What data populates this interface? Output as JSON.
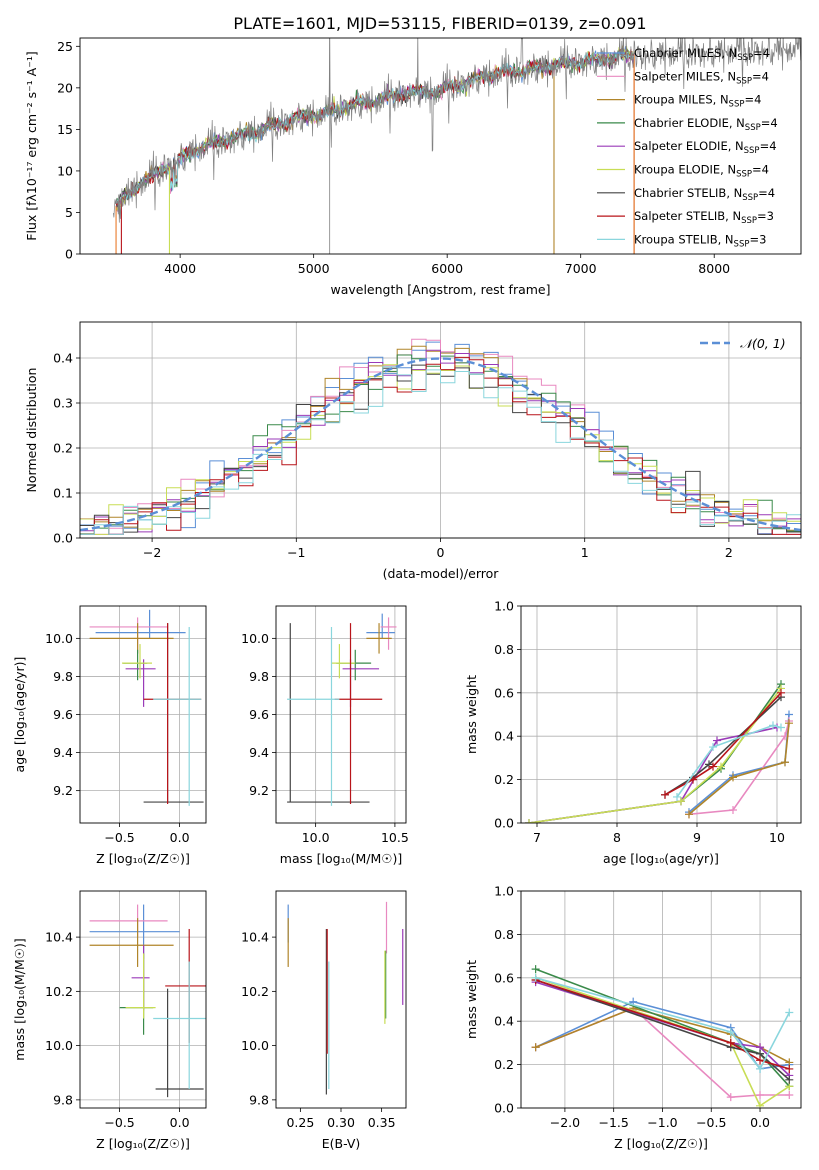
{
  "figure_title": "PLATE=1601, MJD=53115, FIBERID=0139, z=0.091",
  "series": [
    {
      "key": "chabrier_miles",
      "name": "Chabrier MILES, N",
      "sub": "SSP",
      "suffix": "=4",
      "color": "#5b8fd6"
    },
    {
      "key": "salpeter_miles",
      "name": "Salpeter MILES, N",
      "sub": "SSP",
      "suffix": "=4",
      "color": "#e889c0"
    },
    {
      "key": "kroupa_miles",
      "name": "Kroupa MILES, N",
      "sub": "SSP",
      "suffix": "=4",
      "color": "#b0852a"
    },
    {
      "key": "chabrier_elodie",
      "name": "Chabrier ELODIE, N",
      "sub": "SSP",
      "suffix": "=4",
      "color": "#3a8a4a"
    },
    {
      "key": "salpeter_elodie",
      "name": "Salpeter ELODIE, N",
      "sub": "SSP",
      "suffix": "=4",
      "color": "#9a3ab8"
    },
    {
      "key": "kroupa_elodie",
      "name": "Kroupa ELODIE, N",
      "sub": "SSP",
      "suffix": "=4",
      "color": "#c8dd55"
    },
    {
      "key": "chabrier_stelib",
      "name": "Chabrier STELIB, N",
      "sub": "SSP",
      "suffix": "=4",
      "color": "#444444"
    },
    {
      "key": "salpeter_stelib",
      "name": "Salpeter STELIB, N",
      "sub": "SSP",
      "suffix": "=3",
      "color": "#b8141a"
    },
    {
      "key": "kroupa_stelib",
      "name": "Kroupa STELIB, N",
      "sub": "SSP",
      "suffix": "=3",
      "color": "#8ad6dd"
    }
  ],
  "chart_data": [
    {
      "id": "spectrum",
      "type": "line",
      "xlabel": "wavelength [Angstrom, rest frame]",
      "ylabel": "Flux [fλ10⁻¹⁷ erg cm⁻² s⁻¹ A⁻¹]",
      "xlim": [
        3250,
        8650
      ],
      "ylim": [
        0,
        26
      ],
      "xticks": [
        4000,
        5000,
        6000,
        7000,
        8000
      ],
      "yticks": [
        0,
        5,
        10,
        15,
        20,
        25
      ],
      "legend": "upper right",
      "grid": false,
      "data_color": "#808080",
      "continuum": {
        "x": [
          3500,
          3700,
          3900,
          4100,
          4300,
          4500,
          4700,
          4900,
          5100,
          5300,
          5500,
          5700,
          5900,
          6100,
          6300,
          6500,
          6700,
          6900,
          7100,
          7300,
          7400
        ],
        "y": [
          5.5,
          8.5,
          10.5,
          12.5,
          13.5,
          14.5,
          15.5,
          16.5,
          17,
          18,
          18.5,
          19.5,
          19.5,
          20.5,
          21.5,
          22,
          22.5,
          23,
          23.3,
          23.8,
          24
        ]
      },
      "model_range": [
        3520,
        7400
      ],
      "data_range": [
        3500,
        8650
      ]
    },
    {
      "id": "residuals",
      "type": "histogram",
      "xlabel": "(data-model)/error",
      "ylabel": "Normed distribution",
      "xlim": [
        -2.5,
        2.5
      ],
      "ylim": [
        0,
        0.48
      ],
      "xticks": [
        -2,
        -1,
        0,
        1,
        2
      ],
      "yticks": [
        0.0,
        0.1,
        0.2,
        0.3,
        0.4
      ],
      "legend": "upper right",
      "grid": true,
      "gauss_label": "𝒩(0, 1)",
      "gauss_color": "#5b8fd6",
      "bin_width": 0.1
    },
    {
      "id": "age_vs_Z",
      "type": "errorbar",
      "xlabel": "Z [log₁₀(Z/Z☉)]",
      "ylabel": "age  [log₁₀(age/yr)]",
      "xlim": [
        -0.83,
        0.22
      ],
      "ylim": [
        9.03,
        10.17
      ],
      "xticks": [
        -0.5,
        0.0
      ],
      "yticks": [
        9.2,
        9.4,
        9.6,
        9.8,
        10.0
      ],
      "grid": true,
      "points": [
        {
          "s": 0,
          "x": -0.25,
          "y": 10.03,
          "xe": [
            0.45,
            0.3
          ],
          "ye": [
            0.03,
            0.12
          ]
        },
        {
          "s": 1,
          "x": -0.35,
          "y": 10.06,
          "xe": [
            0.4,
            0.25
          ],
          "ye": [
            0.12,
            0.05
          ]
        },
        {
          "s": 2,
          "x": -0.35,
          "y": 10.0,
          "xe": [
            0.4,
            0.3
          ],
          "ye": [
            0.08,
            0.08
          ]
        },
        {
          "s": 3,
          "x": -0.35,
          "y": 9.87,
          "xe": [
            0.12,
            0.08
          ],
          "ye": [
            0.09,
            0.07
          ]
        },
        {
          "s": 4,
          "x": -0.3,
          "y": 9.84,
          "xe": [
            0.15,
            0.1
          ],
          "ye": [
            0.2,
            0.05
          ]
        },
        {
          "s": 5,
          "x": -0.33,
          "y": 9.87,
          "xe": [
            0.15,
            0.1
          ],
          "ye": [
            0.08,
            0.1
          ]
        },
        {
          "s": 6,
          "x": -0.1,
          "y": 9.14,
          "xe": [
            0.2,
            0.3
          ],
          "ye": [
            0.0,
            0.94
          ]
        },
        {
          "s": 7,
          "x": -0.1,
          "y": 9.68,
          "xe": [
            0.2,
            0.28
          ],
          "ye": [
            0.55,
            0.4
          ]
        },
        {
          "s": 8,
          "x": 0.08,
          "y": 9.68,
          "xe": [
            0.3,
            0.1
          ],
          "ye": [
            0.56,
            0.38
          ]
        }
      ]
    },
    {
      "id": "age_vs_mass",
      "type": "errorbar",
      "xlabel": "mass [log₁₀(M/M☉)]",
      "ylabel": "",
      "xlim": [
        9.75,
        10.57
      ],
      "ylim": [
        9.03,
        10.17
      ],
      "xticks": [
        10.0,
        10.5
      ],
      "yticks": [
        9.2,
        9.4,
        9.6,
        9.8,
        10.0
      ],
      "grid": true,
      "points": [
        {
          "s": 0,
          "x": 10.42,
          "y": 10.03,
          "xe": [
            0.1,
            0.08
          ],
          "ye": [
            0.03,
            0.1
          ]
        },
        {
          "s": 1,
          "x": 10.46,
          "y": 10.06,
          "xe": [
            0.05,
            0.05
          ],
          "ye": [
            0.12,
            0.05
          ]
        },
        {
          "s": 2,
          "x": 10.4,
          "y": 10.0,
          "xe": [
            0.08,
            0.08
          ],
          "ye": [
            0.08,
            0.08
          ]
        },
        {
          "s": 3,
          "x": 10.25,
          "y": 9.87,
          "xe": [
            0.12,
            0.1
          ],
          "ye": [
            0.09,
            0.07
          ]
        },
        {
          "s": 4,
          "x": 10.22,
          "y": 9.84,
          "xe": [
            0.05,
            0.18
          ],
          "ye": [
            0.2,
            0.05
          ]
        },
        {
          "s": 5,
          "x": 10.15,
          "y": 9.87,
          "xe": [
            0.05,
            0.1
          ],
          "ye": [
            0.08,
            0.1
          ]
        },
        {
          "s": 6,
          "x": 9.84,
          "y": 9.14,
          "xe": [
            0.02,
            0.5
          ],
          "ye": [
            0.0,
            0.94
          ]
        },
        {
          "s": 7,
          "x": 10.22,
          "y": 9.68,
          "xe": [
            0.1,
            0.2
          ],
          "ye": [
            0.55,
            0.4
          ]
        },
        {
          "s": 8,
          "x": 10.1,
          "y": 9.68,
          "xe": [
            0.28,
            0.05
          ],
          "ye": [
            0.56,
            0.38
          ]
        }
      ]
    },
    {
      "id": "massweight_vs_age",
      "type": "line",
      "xlabel": "age  [log₁₀(age/yr)]",
      "ylabel": "mass weight",
      "xlim": [
        6.8,
        10.3
      ],
      "ylim": [
        0,
        1
      ],
      "xticks": [
        7,
        8,
        9,
        10
      ],
      "yticks": [
        0.0,
        0.2,
        0.4,
        0.6,
        0.8,
        1.0
      ],
      "grid": true,
      "lines": [
        {
          "s": 0,
          "x": [
            8.9,
            9.45,
            10.1,
            10.15
          ],
          "y": [
            0.05,
            0.22,
            0.28,
            0.5
          ]
        },
        {
          "s": 1,
          "x": [
            8.9,
            9.45,
            10.1,
            10.15
          ],
          "y": [
            0.04,
            0.06,
            0.4,
            0.47
          ]
        },
        {
          "s": 2,
          "x": [
            8.9,
            9.45,
            10.1,
            10.15
          ],
          "y": [
            0.04,
            0.21,
            0.28,
            0.46
          ]
        },
        {
          "s": 3,
          "x": [
            6.9,
            8.8,
            9.3,
            10.05
          ],
          "y": [
            0.0,
            0.1,
            0.25,
            0.64
          ]
        },
        {
          "s": 4,
          "x": [
            6.9,
            8.8,
            9.25,
            10.0
          ],
          "y": [
            0.0,
            0.1,
            0.38,
            0.44
          ]
        },
        {
          "s": 5,
          "x": [
            6.9,
            8.8,
            9.3,
            10.05
          ],
          "y": [
            0.0,
            0.1,
            0.26,
            0.62
          ]
        },
        {
          "s": 6,
          "x": [
            8.6,
            8.95,
            9.15,
            10.05
          ],
          "y": [
            0.13,
            0.21,
            0.27,
            0.58
          ]
        },
        {
          "s": 7,
          "x": [
            8.6,
            8.95,
            9.2,
            10.05
          ],
          "y": [
            0.13,
            0.2,
            0.26,
            0.6
          ]
        },
        {
          "s": 8,
          "x": [
            8.75,
            9.2,
            9.95,
            10.05
          ],
          "y": [
            0.12,
            0.35,
            0.45,
            0.44
          ]
        }
      ]
    },
    {
      "id": "mass_vs_Z",
      "type": "errorbar",
      "xlabel": "Z [log₁₀(Z/Z☉)]",
      "ylabel": "mass [log₁₀(M/M☉)]",
      "xlim": [
        -0.83,
        0.22
      ],
      "ylim": [
        9.77,
        10.57
      ],
      "xticks": [
        -0.5,
        0.0
      ],
      "yticks": [
        9.8,
        10.0,
        10.2,
        10.4
      ],
      "grid": true,
      "points": [
        {
          "s": 0,
          "x": -0.3,
          "y": 10.42,
          "xe": [
            0.45,
            0.3
          ],
          "ye": [
            0.1,
            0.1
          ]
        },
        {
          "s": 1,
          "x": -0.35,
          "y": 10.46,
          "xe": [
            0.4,
            0.25
          ],
          "ye": [
            0.06,
            0.06
          ]
        },
        {
          "s": 2,
          "x": -0.35,
          "y": 10.37,
          "xe": [
            0.4,
            0.3
          ],
          "ye": [
            0.08,
            0.1
          ]
        },
        {
          "s": 3,
          "x": -0.3,
          "y": 10.14,
          "xe": [
            0.2,
            0.08
          ],
          "ye": [
            0.1,
            0.2
          ]
        },
        {
          "s": 4,
          "x": -0.3,
          "y": 10.25,
          "xe": [
            0.1,
            0.05
          ],
          "ye": [
            0.12,
            0.12
          ]
        },
        {
          "s": 5,
          "x": -0.3,
          "y": 10.14,
          "xe": [
            0.15,
            0.1
          ],
          "ye": [
            0.04,
            0.2
          ]
        },
        {
          "s": 6,
          "x": -0.1,
          "y": 9.84,
          "xe": [
            0.1,
            0.3
          ],
          "ye": [
            0.03,
            0.37
          ]
        },
        {
          "s": 7,
          "x": 0.08,
          "y": 10.22,
          "xe": [
            0.2,
            0.15
          ],
          "ye": [
            0.21,
            0.21
          ]
        },
        {
          "s": 8,
          "x": 0.08,
          "y": 10.1,
          "xe": [
            0.3,
            0.18
          ],
          "ye": [
            0.26,
            0.21
          ]
        }
      ]
    },
    {
      "id": "mass_vs_ebv",
      "type": "errorbar",
      "xlabel": "E(B-V)",
      "ylabel": "",
      "xlim": [
        0.22,
        0.38
      ],
      "ylim": [
        9.77,
        10.57
      ],
      "xticks": [
        0.25,
        0.3,
        0.35
      ],
      "yticks": [
        9.8,
        10.0,
        10.2,
        10.4
      ],
      "grid": false,
      "points": [
        {
          "s": 0,
          "x": 0.235,
          "y": 10.44,
          "xe": [
            0,
            0
          ],
          "ye": [
            0.06,
            0.08
          ]
        },
        {
          "s": 1,
          "x": 0.356,
          "y": 10.44,
          "xe": [
            0,
            0
          ],
          "ye": [
            0.1,
            0.09
          ]
        },
        {
          "s": 2,
          "x": 0.235,
          "y": 10.37,
          "xe": [
            0,
            0
          ],
          "ye": [
            0.08,
            0.1
          ]
        },
        {
          "s": 3,
          "x": 0.355,
          "y": 10.25,
          "xe": [
            0,
            0
          ],
          "ye": [
            0.15,
            0.1
          ]
        },
        {
          "s": 4,
          "x": 0.376,
          "y": 10.29,
          "xe": [
            0,
            0
          ],
          "ye": [
            0.14,
            0.14
          ]
        },
        {
          "s": 5,
          "x": 0.354,
          "y": 10.22,
          "xe": [
            0,
            0
          ],
          "ye": [
            0.14,
            0.13
          ]
        },
        {
          "s": 6,
          "x": 0.282,
          "y": 10.05,
          "xe": [
            0,
            0
          ],
          "ye": [
            0.23,
            0.38
          ]
        },
        {
          "s": 7,
          "x": 0.283,
          "y": 10.2,
          "xe": [
            0,
            0
          ],
          "ye": [
            0.23,
            0.23
          ]
        },
        {
          "s": 8,
          "x": 0.285,
          "y": 10.07,
          "xe": [
            0,
            0
          ],
          "ye": [
            0.23,
            0.24
          ]
        }
      ]
    },
    {
      "id": "massweight_vs_Z",
      "type": "line",
      "xlabel": "Z [log₁₀(Z/Z☉)]",
      "ylabel": "mass weight",
      "xlim": [
        -2.45,
        0.42
      ],
      "ylim": [
        0,
        1
      ],
      "xticks": [
        -2.0,
        -1.5,
        -1.0,
        -0.5,
        0.0
      ],
      "yticks": [
        0.0,
        0.2,
        0.4,
        0.6,
        0.8,
        1.0
      ],
      "grid": true,
      "lines": [
        {
          "s": 0,
          "x": [
            -2.3,
            -1.3,
            -0.3,
            0.0,
            0.3
          ],
          "y": [
            0.28,
            0.49,
            0.37,
            0.18,
            0.2
          ]
        },
        {
          "s": 1,
          "x": [
            -2.3,
            -1.3,
            -0.3,
            0.0,
            0.3
          ],
          "y": [
            0.28,
            0.46,
            0.05,
            0.06,
            0.06
          ]
        },
        {
          "s": 2,
          "x": [
            -2.3,
            -1.3,
            -0.3,
            0.0,
            0.3
          ],
          "y": [
            0.28,
            0.46,
            0.34,
            0.28,
            0.21
          ]
        },
        {
          "s": 3,
          "x": [
            -2.3,
            -0.3,
            0.0,
            0.3
          ],
          "y": [
            0.64,
            0.3,
            0.25,
            0.1
          ]
        },
        {
          "s": 4,
          "x": [
            -2.3,
            -0.3,
            0.0,
            0.3
          ],
          "y": [
            0.58,
            0.3,
            0.28,
            0.15
          ]
        },
        {
          "s": 5,
          "x": [
            -2.3,
            -0.3,
            0.0,
            0.3
          ],
          "y": [
            0.6,
            0.3,
            0.01,
            0.1
          ]
        },
        {
          "s": 6,
          "x": [
            -2.3,
            -0.3,
            0.0,
            0.3
          ],
          "y": [
            0.59,
            0.28,
            0.25,
            0.13
          ]
        },
        {
          "s": 7,
          "x": [
            -2.3,
            -0.3,
            0.0,
            0.3
          ],
          "y": [
            0.59,
            0.3,
            0.22,
            0.18
          ]
        },
        {
          "s": 8,
          "x": [
            -2.3,
            -0.3,
            0.0,
            0.3
          ],
          "y": [
            0.6,
            0.35,
            0.18,
            0.44
          ]
        }
      ]
    }
  ]
}
